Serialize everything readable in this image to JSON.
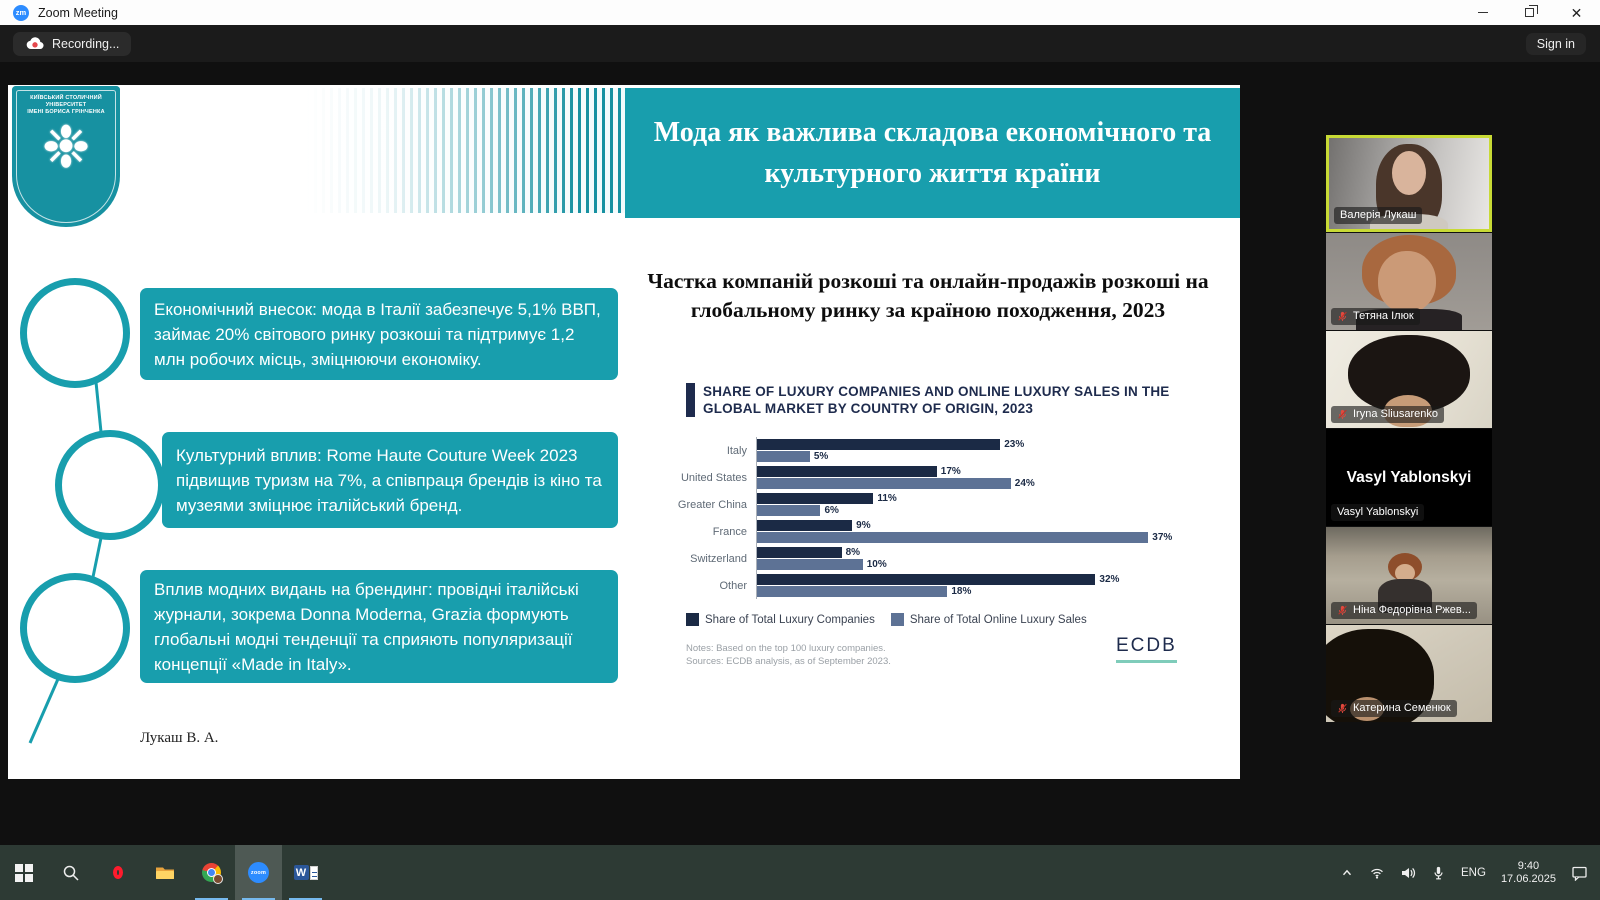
{
  "window": {
    "app_icon": "zm",
    "title": "Zoom Meeting"
  },
  "toolbar": {
    "recording_label": "Recording...",
    "sign_in_label": "Sign in"
  },
  "slide": {
    "logo": {
      "line1": "КИЇВСЬКИЙ СТОЛИЧНИЙ УНІВЕРСИТЕТ",
      "line2": "ІМЕНІ БОРИСА ГРІНЧЕНКА",
      "emblem": "❉"
    },
    "title": "Мода як важлива складова економічного та культурного життя країни",
    "bullets": [
      "Економічний внесок: мода в Італії забезпечує 5,1% ВВП, займає 20% світового ринку розкоші та підтримує 1,2 млн робочих місць, зміцнюючи економіку.",
      "Культурний вплив: Rome Haute Couture Week 2023 підвищив туризм на 7%, а співпраця брендів із кіно та музеями зміцнює італійський бренд.",
      "Вплив модних видань на брендинг: провідні італійські журнали, зокрема Donna Moderna, Grazia формують глобальні модні тенденції та сприяють популяризації концепції «Made in Italy»."
    ],
    "author": "Лукаш В. А.",
    "chart_title_ua": "Частка компаній розкоші та онлайн-продажів розкоші на глобальному ринку за країною походження, 2023",
    "chart_header_en": "SHARE OF LUXURY COMPANIES AND ONLINE LUXURY SALES IN THE GLOBAL MARKET BY COUNTRY OF ORIGIN, 2023",
    "notes_line1": "Notes: Based on the top 100 luxury companies.",
    "notes_line2": "Sources: ECDB analysis, as of September 2023.",
    "ecdb_logo": "ECDB"
  },
  "chart_data": {
    "type": "bar",
    "orientation": "horizontal",
    "title": "Share of luxury companies and online luxury sales in the global market by country of origin, 2023",
    "categories": [
      "Italy",
      "United States",
      "Greater China",
      "France",
      "Switzerland",
      "Other"
    ],
    "series": [
      {
        "name": "Share of Total Luxury Companies",
        "color": "#1b2a45",
        "values": [
          23,
          17,
          11,
          9,
          8,
          32
        ]
      },
      {
        "name": "Share of Total Online Luxury Sales",
        "color": "#5d7295",
        "values": [
          5,
          24,
          6,
          37,
          10,
          18
        ]
      }
    ],
    "value_suffix": "%",
    "xlim": [
      0,
      40
    ],
    "grid": false,
    "legend_position": "bottom"
  },
  "participants": [
    {
      "name": "Валерія Лукаш",
      "muted": false,
      "active": true,
      "video": true
    },
    {
      "name": "Тетяна Ілюк",
      "muted": true,
      "active": false,
      "video": true
    },
    {
      "name": "Iryna Sliusarenko",
      "muted": true,
      "active": false,
      "video": true
    },
    {
      "name": "Vasyl Yablonskyi",
      "muted": false,
      "active": false,
      "video": false,
      "display_text": "Vasyl Yablonskyi"
    },
    {
      "name": "Ніна Федорівна Ржев...",
      "muted": true,
      "active": false,
      "video": true
    },
    {
      "name": "Катерина Семенюк",
      "muted": true,
      "active": false,
      "video": true
    }
  ],
  "taskbar": {
    "apps": [
      {
        "icon": "start-icon",
        "running": false
      },
      {
        "icon": "search-icon",
        "running": false
      },
      {
        "icon": "opera-icon",
        "running": false
      },
      {
        "icon": "file-explorer-icon",
        "running": false
      },
      {
        "icon": "chrome-icon",
        "running": true
      },
      {
        "icon": "zoom-icon",
        "running": true,
        "focused": true
      },
      {
        "icon": "word-icon",
        "running": true
      }
    ],
    "tray": {
      "language": "ENG",
      "time": "9:40",
      "date": "17.06.2025"
    }
  },
  "colors": {
    "teal_accent": "#189ead",
    "logo_teal": "#1791a1",
    "navy": "#1b2a45",
    "slate": "#5d7295",
    "active_speaker_border": "#c8da35",
    "recording_red": "#e5484d",
    "zoom_blue": "#2d8cff",
    "ecdb_underline": "#7fccba"
  }
}
